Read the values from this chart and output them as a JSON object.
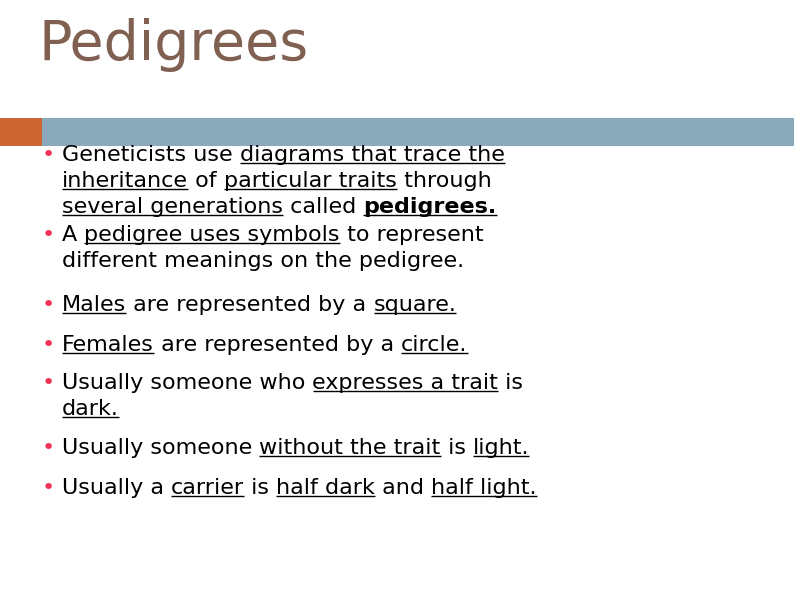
{
  "title": "Pedigrees",
  "title_color": "#806050",
  "bg_color": "#ffffff",
  "orange_rect_color": "#cc6633",
  "blue_band_color": "#8aaabb",
  "bullet_color": "#ee3355",
  "text_color": "#000000",
  "font_size": 16,
  "title_fontsize": 40,
  "bullets": [
    [
      [
        [
          "Geneticists use ",
          false,
          false
        ],
        [
          "diagrams that trace the",
          true,
          false
        ]
      ],
      [
        [
          "inheritance",
          true,
          false
        ],
        [
          " of ",
          false,
          false
        ],
        [
          "particular traits",
          true,
          false
        ],
        [
          " through",
          false,
          false
        ]
      ],
      [
        [
          "several generations",
          true,
          false
        ],
        [
          " called ",
          false,
          false
        ],
        [
          "pedigrees.",
          true,
          true
        ]
      ]
    ],
    [
      [
        [
          "A ",
          false,
          false
        ],
        [
          "pedigree uses symbols",
          true,
          false
        ],
        [
          " to represent",
          false,
          false
        ]
      ],
      [
        [
          "different meanings on the pedigree.",
          false,
          false
        ]
      ]
    ],
    [
      [
        [
          "Males",
          true,
          false
        ],
        [
          " are represented by a ",
          false,
          false
        ],
        [
          "square.",
          true,
          false
        ]
      ]
    ],
    [
      [
        [
          "Females",
          true,
          false
        ],
        [
          " are represented by a ",
          false,
          false
        ],
        [
          "circle.",
          true,
          false
        ]
      ]
    ],
    [
      [
        [
          "Usually someone who ",
          false,
          false
        ],
        [
          "expresses a trait",
          true,
          false
        ],
        [
          " is",
          false,
          false
        ]
      ],
      [
        [
          "dark.",
          true,
          false
        ]
      ]
    ],
    [
      [
        [
          "Usually someone ",
          false,
          false
        ],
        [
          "without the trait",
          true,
          false
        ],
        [
          " is ",
          false,
          false
        ],
        [
          "light.",
          true,
          false
        ]
      ]
    ],
    [
      [
        [
          "Usually a ",
          false,
          false
        ],
        [
          "carrier",
          true,
          false
        ],
        [
          " is ",
          false,
          false
        ],
        [
          "half dark",
          true,
          false
        ],
        [
          " and ",
          false,
          false
        ],
        [
          "half light.",
          true,
          false
        ]
      ]
    ]
  ]
}
